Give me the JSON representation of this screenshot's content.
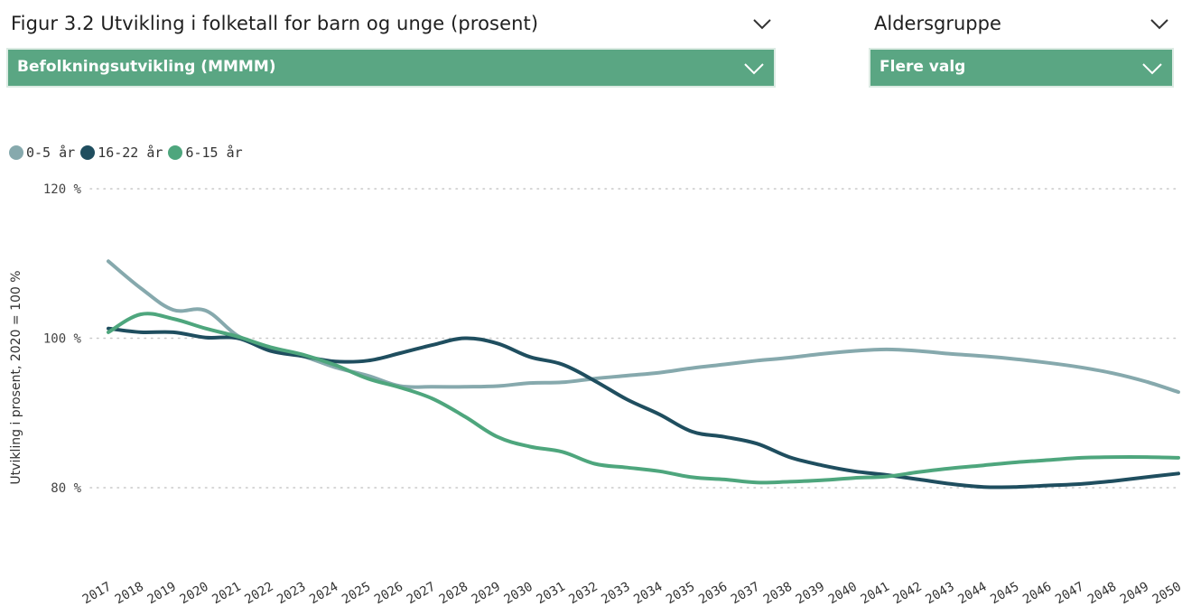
{
  "header": {
    "title": "Figur 3.2 Utvikling i folketall for barn og unge (prosent)",
    "filter_label": "Aldersgruppe"
  },
  "dropdowns": {
    "measure": "Befolkningsutvikling (MMMM)",
    "agegroup": "Flere valg"
  },
  "colors": {
    "accent": "#5aa683",
    "series_0_5": "#86a9ad",
    "series_16_22": "#1f4e5f",
    "series_6_15": "#4ea67d"
  },
  "icons": [
    "chevron-down-icon"
  ],
  "chart_data": {
    "type": "line",
    "ylabel": "Utvikling i prosent, 2020 = 100 %",
    "xlabel": "",
    "ylim": [
      78,
      120
    ],
    "yticks": [
      {
        "value": 80,
        "label": "80 %"
      },
      {
        "value": 100,
        "label": "100 %"
      },
      {
        "value": 120,
        "label": "120 %"
      }
    ],
    "grid": true,
    "legend_position": "top-left",
    "categories": [
      "2017",
      "2018",
      "2019",
      "2020",
      "2021",
      "2022",
      "2023",
      "2024",
      "2025",
      "2026",
      "2027",
      "2028",
      "2029",
      "2030",
      "2031",
      "2032",
      "2033",
      "2034",
      "2035",
      "2036",
      "2037",
      "2038",
      "2039",
      "2040",
      "2041",
      "2042",
      "2043",
      "2044",
      "2045",
      "2046",
      "2047",
      "2048",
      "2049",
      "2050"
    ],
    "series": [
      {
        "name": "0-5 år",
        "color": "#86a9ad",
        "values": [
          110.3,
          106.7,
          103.8,
          103.7,
          100.3,
          98.6,
          97.6,
          96.1,
          95.0,
          93.6,
          93.5,
          93.5,
          93.6,
          94.0,
          94.1,
          94.6,
          95.0,
          95.4,
          96.0,
          96.5,
          97.0,
          97.4,
          97.9,
          98.3,
          98.5,
          98.3,
          97.9,
          97.6,
          97.2,
          96.7,
          96.1,
          95.3,
          94.2,
          92.8
        ]
      },
      {
        "name": "16-22 år",
        "color": "#1f4e5f",
        "values": [
          101.3,
          100.8,
          100.8,
          100.1,
          100.0,
          98.3,
          97.6,
          96.9,
          97.0,
          98.0,
          99.1,
          100.0,
          99.3,
          97.5,
          96.5,
          94.3,
          91.8,
          89.8,
          87.5,
          86.8,
          85.9,
          84.1,
          83.0,
          82.2,
          81.7,
          81.1,
          80.5,
          80.1,
          80.1,
          80.3,
          80.5,
          80.9,
          81.4,
          81.9
        ]
      },
      {
        "name": "6-15 år",
        "color": "#4ea67d",
        "values": [
          100.8,
          103.2,
          102.6,
          101.3,
          100.2,
          98.8,
          97.8,
          96.4,
          94.6,
          93.4,
          91.9,
          89.5,
          86.8,
          85.5,
          84.8,
          83.2,
          82.7,
          82.2,
          81.4,
          81.1,
          80.7,
          80.8,
          81.0,
          81.3,
          81.5,
          82.1,
          82.6,
          83.0,
          83.4,
          83.7,
          84.0,
          84.1,
          84.1,
          84.0
        ]
      }
    ]
  }
}
